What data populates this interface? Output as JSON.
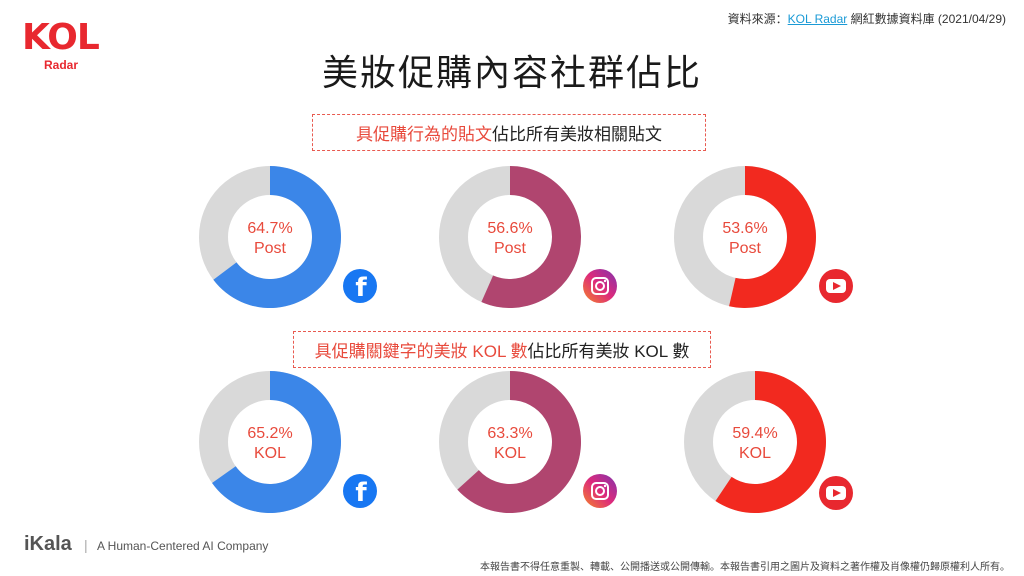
{
  "logo": {
    "brand": "KOL",
    "sub": "Radar"
  },
  "source": {
    "prefix": "資料來源：",
    "link": "KOL Radar",
    "suffix": " 網紅數據資料庫 (2021/04/29)"
  },
  "title": "美妝促購內容社群佔比",
  "section1": {
    "highlight": "具促購行為的貼文",
    "rest": "佔比所有美妝相關貼文"
  },
  "section2": {
    "highlight": "具促購關鍵字的美妝 KOL 數",
    "rest": "佔比所有美妝 KOL 數"
  },
  "colors": {
    "facebook": "#3b86e8",
    "instagram": "#b0456f",
    "youtube": "#f2291f",
    "remainder": "#d9d9d9",
    "label": "#e84a3c"
  },
  "chart_data": [
    {
      "type": "pie",
      "platform": "facebook",
      "icon": "facebook-icon",
      "value": 64.7,
      "label": "64.7%",
      "unit": "Post"
    },
    {
      "type": "pie",
      "platform": "instagram",
      "icon": "instagram-icon",
      "value": 56.6,
      "label": "56.6%",
      "unit": "Post"
    },
    {
      "type": "pie",
      "platform": "youtube",
      "icon": "youtube-icon",
      "value": 53.6,
      "label": "53.6%",
      "unit": "Post"
    },
    {
      "type": "pie",
      "platform": "facebook",
      "icon": "facebook-icon",
      "value": 65.2,
      "label": "65.2%",
      "unit": "KOL"
    },
    {
      "type": "pie",
      "platform": "instagram",
      "icon": "instagram-icon",
      "value": 63.3,
      "label": "63.3%",
      "unit": "KOL"
    },
    {
      "type": "pie",
      "platform": "youtube",
      "icon": "youtube-icon",
      "value": 59.4,
      "label": "59.4%",
      "unit": "KOL"
    }
  ],
  "footer": {
    "brand": "iKala",
    "separator": "|",
    "tagline": "A Human-Centered AI Company",
    "disclaimer": "本報告書不得任意重製、轉載、公開播送或公開傳輸。本報告書引用之圖片及資料之著作權及肖像權仍歸原權利人所有。"
  }
}
